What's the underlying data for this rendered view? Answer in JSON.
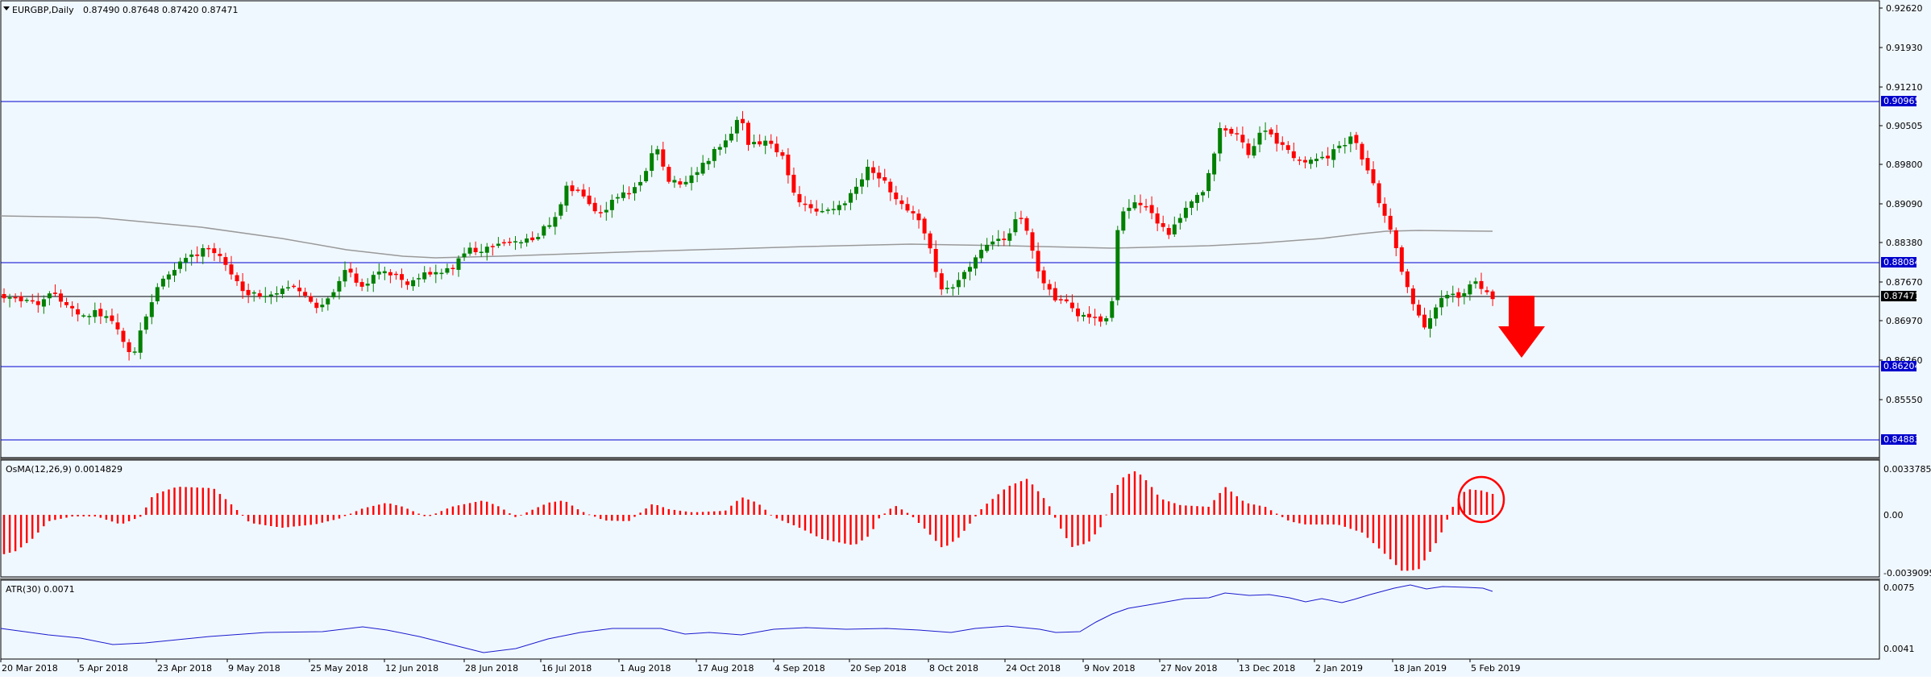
{
  "main": {
    "symbol_text": "EURGBP,Daily",
    "ohlc_text": "0.87490 0.87648 0.87420 0.87471",
    "price_labels": [
      "0.92620",
      "0.91930",
      "0.91210",
      "0.90505",
      "0.89800",
      "0.89090",
      "0.88380",
      "0.87670",
      "0.86970",
      "0.86260",
      "0.85550"
    ],
    "level_badges": [
      "0.90965",
      "0.88084",
      "0.87471",
      "0.86204",
      "0.84883"
    ]
  },
  "osma": {
    "title": "OsMA(12,26,9) 0.0014829",
    "labels": [
      "0.0033785",
      "0.00",
      "-0.0039095"
    ]
  },
  "atr": {
    "title": "ATR(30) 0.0071",
    "labels": [
      "0.0075",
      "0.0041"
    ]
  },
  "xaxis": {
    "dates": [
      "20 Mar 2018",
      "5 Apr 2018",
      "23 Apr 2018",
      "9 May 2018",
      "25 May 2018",
      "12 Jun 2018",
      "28 Jun 2018",
      "16 Jul 2018",
      "1 Aug 2018",
      "17 Aug 2018",
      "4 Sep 2018",
      "20 Sep 2018",
      "8 Oct 2018",
      "24 Oct 2018",
      "9 Nov 2018",
      "27 Nov 2018",
      "13 Dec 2018",
      "2 Jan 2019",
      "18 Jan 2019",
      "5 Feb 2019"
    ]
  },
  "colors": {
    "background": "#f0f8ff",
    "bull": "#008000",
    "bear": "#ff0000",
    "level_line": "#0000cd",
    "current_price": "#000000",
    "moving_average": "#999999",
    "atr_line": "#1a1acd",
    "arrow": "#ff0000"
  }
}
